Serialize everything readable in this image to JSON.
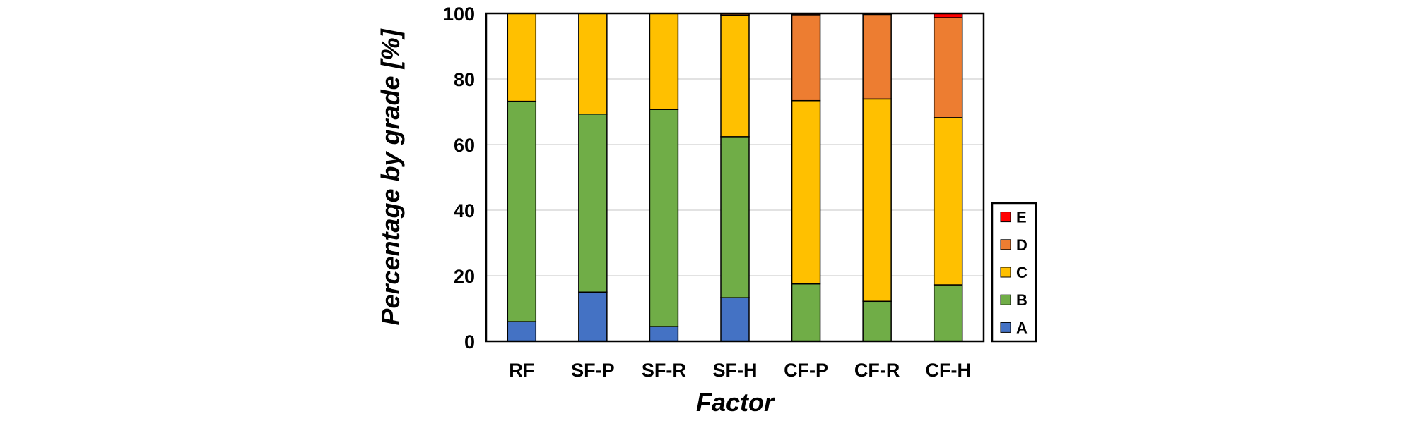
{
  "chart_data": {
    "type": "bar",
    "stacked": true,
    "title": "",
    "xlabel": "Factor",
    "ylabel": "Percentage by grade [%]",
    "ylim": [
      0,
      100
    ],
    "yticks": [
      0,
      20,
      40,
      60,
      80,
      100
    ],
    "grid": true,
    "legend_position": "right",
    "categories": [
      "RF",
      "SF-P",
      "SF-R",
      "SF-H",
      "CF-P",
      "CF-R",
      "CF-H"
    ],
    "series": [
      {
        "name": "A",
        "color": "#4472C4",
        "values": [
          6,
          15,
          4.5,
          13.3,
          0,
          0,
          0
        ]
      },
      {
        "name": "B",
        "color": "#70AD47",
        "values": [
          67.2,
          54.3,
          66.2,
          49.1,
          17.5,
          12.2,
          17.2
        ]
      },
      {
        "name": "C",
        "color": "#FFC000",
        "values": [
          26.8,
          30.7,
          29.3,
          37.1,
          55.9,
          61.7,
          51
        ]
      },
      {
        "name": "D",
        "color": "#ED7D31",
        "values": [
          0,
          0,
          0,
          0.5,
          26.2,
          25.8,
          30.5
        ]
      },
      {
        "name": "E",
        "color": "#FF0000",
        "values": [
          0,
          0,
          0,
          0,
          0.4,
          0.3,
          1.3
        ]
      }
    ]
  }
}
